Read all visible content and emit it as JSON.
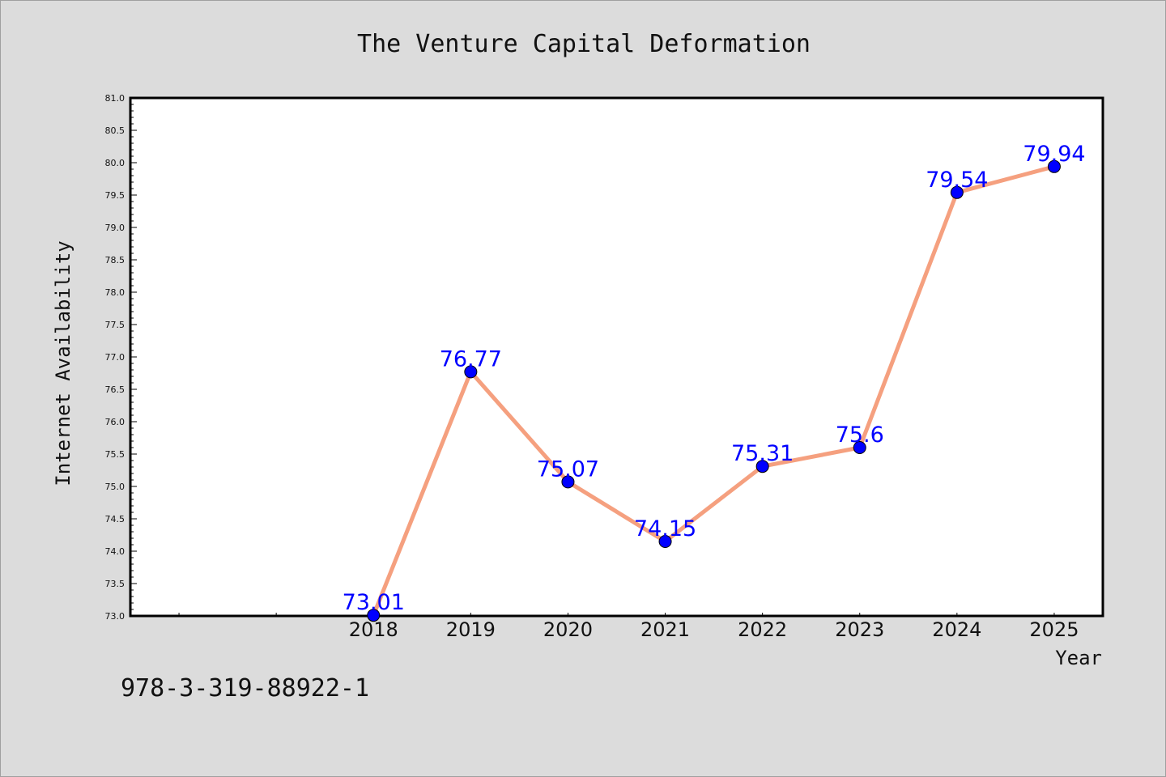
{
  "chart_data": {
    "type": "line",
    "title": "The Venture Capital Deformation",
    "xlabel": "Year",
    "ylabel": "Internet Availability",
    "x": [
      2018,
      2019,
      2020,
      2021,
      2022,
      2023,
      2024,
      2025
    ],
    "series": [
      {
        "values": [
          73.01,
          76.77,
          75.07,
          74.15,
          75.31,
          75.6,
          79.54,
          79.94
        ]
      }
    ],
    "data_labels": [
      "73.01",
      "76.77",
      "75.07",
      "74.15",
      "75.31",
      "75.6",
      "79.54",
      "79.94"
    ],
    "xticks": [
      "2018",
      "2019",
      "2020",
      "2021",
      "2022",
      "2023",
      "2024",
      "2025"
    ],
    "ylim": [
      73.0,
      81.0
    ],
    "yticks": [
      "73.0",
      "73.5",
      "74.0",
      "74.5",
      "75.0",
      "75.5",
      "76.0",
      "76.5",
      "77.0",
      "77.5",
      "78.0",
      "78.5",
      "79.0",
      "79.5",
      "80.0",
      "80.5",
      "81.0"
    ],
    "xlim": [
      2015.5,
      2025.5
    ],
    "grid": false,
    "colors": {
      "line": "#f5a07f",
      "marker": "#0000ff",
      "label": "#0000ff",
      "background": "#dcdcdc",
      "plot_background": "#ffffff"
    }
  },
  "footer": {
    "text": "978-3-319-88922-1"
  }
}
